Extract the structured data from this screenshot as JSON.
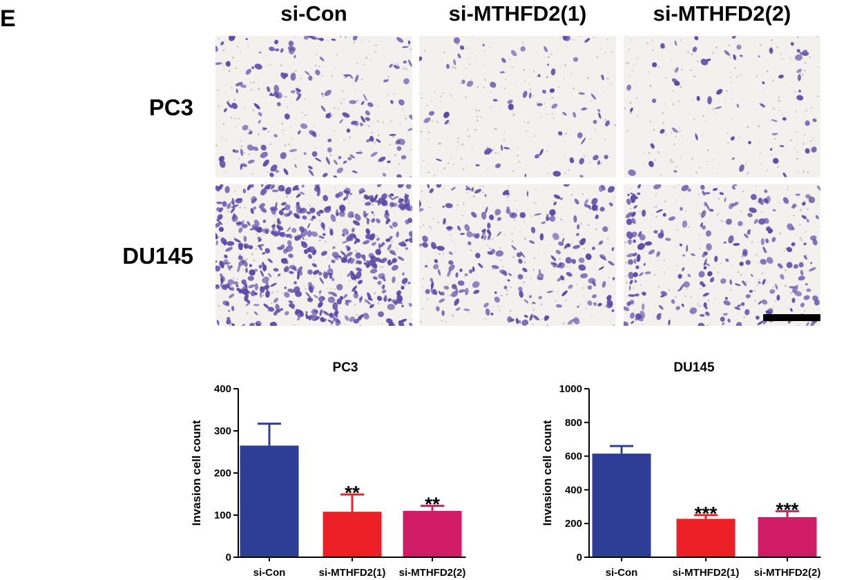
{
  "figure": {
    "panel_letter": "E",
    "conditions": [
      "si-Con",
      "si-MTHFD2(1)",
      "si-MTHFD2(2)"
    ],
    "cell_lines": [
      "PC3",
      "DU145"
    ]
  },
  "colors": {
    "si_con": "#2e3e96",
    "si_mthfd2_1": "#ee2027",
    "si_mthfd2_2": "#cf1c64",
    "cell_stain": "#5b4aa8",
    "micro_bg": "#f3f1ee"
  },
  "chart_data": [
    {
      "type": "bar",
      "title": "PC3",
      "categories": [
        "si-Con",
        "si-MTHFD2(1)",
        "si-MTHFD2(2)"
      ],
      "values": [
        265,
        108,
        110
      ],
      "error": [
        52,
        41,
        12
      ],
      "significance": [
        "",
        "**",
        "**"
      ],
      "ylabel": "Invasion cell count",
      "xlabel": "",
      "ylim": [
        0,
        400
      ],
      "yticks": [
        0,
        100,
        200,
        300,
        400
      ],
      "colors": [
        "#2e3e96",
        "#ee2027",
        "#cf1c64"
      ]
    },
    {
      "type": "bar",
      "title": "DU145",
      "categories": [
        "si-Con",
        "si-MTHFD2(1)",
        "si-MTHFD2(2)"
      ],
      "values": [
        615,
        228,
        238
      ],
      "error": [
        45,
        22,
        35
      ],
      "significance": [
        "",
        "***",
        "***"
      ],
      "ylabel": "Invasion cell count",
      "xlabel": "",
      "ylim": [
        0,
        1000
      ],
      "yticks": [
        0,
        200,
        400,
        600,
        800,
        1000
      ],
      "colors": [
        "#2e3e96",
        "#ee2027",
        "#cf1c64"
      ]
    }
  ]
}
